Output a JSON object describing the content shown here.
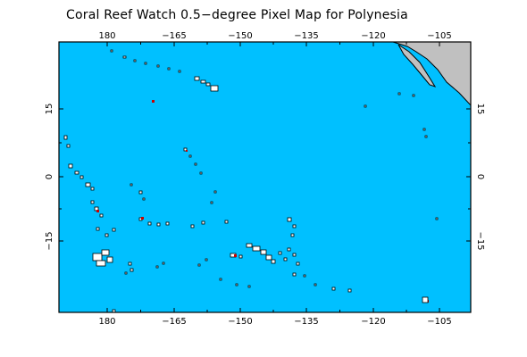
{
  "title": "Coral Reef Watch 0.5−degree Pixel Map for Polynesia",
  "map": {
    "lon_range": [
      172,
      204
    ],
    "lat_range": [
      -24,
      28
    ],
    "ocean_color": "#00c0ff",
    "land_color": "#c0c0c0",
    "reef_color": "#ffffff",
    "reef_outline_color": "#000000",
    "alert_color": "#cc0000",
    "lon_ticks": [
      "180",
      "−165",
      "−150",
      "−135",
      "−120",
      "−105"
    ],
    "lat_ticks": [
      "15",
      "0",
      "−15"
    ]
  }
}
